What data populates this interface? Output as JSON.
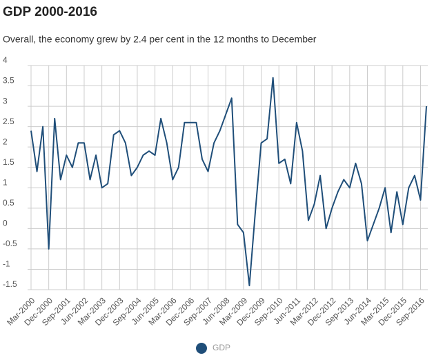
{
  "chart_data": {
    "type": "line",
    "title": "GDP 2000-2016",
    "subtitle": "Overall, the economy grew by 2.4 per cent in the 12 months to December",
    "categories": [
      "Mar-2000",
      null,
      null,
      "Dec-2000",
      null,
      null,
      "Sep-2001",
      null,
      null,
      "Jun-2002",
      null,
      null,
      "Mar-2003",
      null,
      null,
      "Dec-2003",
      null,
      null,
      "Sep-2004",
      null,
      null,
      "Jun-2005",
      null,
      null,
      "Mar-2006",
      null,
      null,
      "Dec-2006",
      null,
      null,
      "Sep-2007",
      null,
      null,
      "Jun-2008",
      null,
      null,
      "Mar-2009",
      null,
      null,
      "Dec-2009",
      null,
      null,
      "Sep-2010",
      null,
      null,
      "Jun-2011",
      null,
      null,
      "Mar-2012",
      null,
      null,
      "Dec-2012",
      null,
      null,
      "Sep-2013",
      null,
      null,
      "Jun-2014",
      null,
      null,
      "Mar-2015",
      null,
      null,
      "Dec-2015",
      null,
      null,
      "Sep-2016",
      null
    ],
    "series": [
      {
        "name": "GDP",
        "color": "#1f4e79",
        "values": [
          2.4,
          1.4,
          2.5,
          -0.5,
          2.7,
          1.2,
          1.8,
          1.5,
          2.1,
          2.1,
          1.2,
          1.8,
          1.0,
          1.1,
          2.3,
          2.4,
          2.1,
          1.3,
          1.5,
          1.8,
          1.9,
          1.8,
          2.7,
          2.1,
          1.2,
          1.5,
          2.6,
          2.6,
          2.6,
          1.7,
          1.4,
          2.1,
          2.4,
          2.8,
          3.2,
          0.1,
          -0.1,
          -1.4,
          0.4,
          2.1,
          2.2,
          3.7,
          1.6,
          1.7,
          1.1,
          2.6,
          1.9,
          0.2,
          0.6,
          1.3,
          0.0,
          0.5,
          0.9,
          1.2,
          1.0,
          1.6,
          1.1,
          -0.3,
          0.1,
          0.5,
          1.0,
          -0.1,
          0.9,
          0.1,
          1.0,
          1.3,
          0.7,
          3.0
        ]
      }
    ],
    "ylim": [
      -1.5,
      4
    ],
    "yticks": [
      -1.5,
      -1,
      -0.5,
      0,
      0.5,
      1,
      1.5,
      2,
      2.5,
      3,
      3.5,
      4
    ],
    "grid": true
  }
}
